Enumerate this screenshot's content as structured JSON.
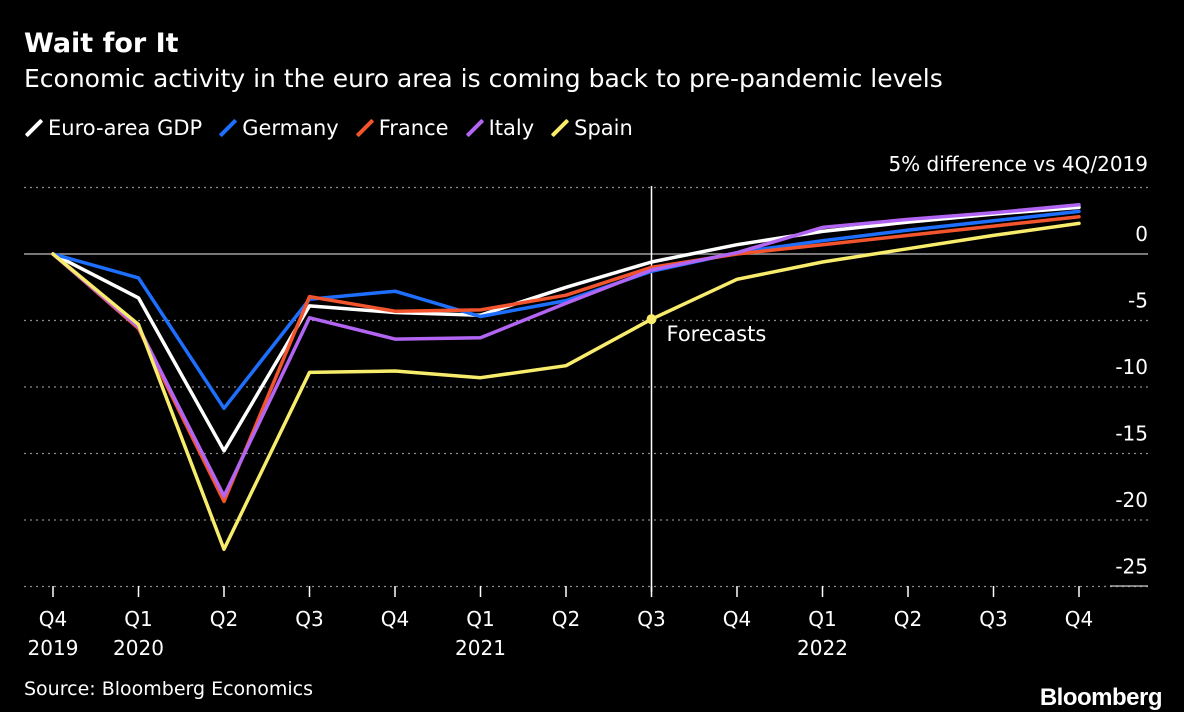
{
  "chart_data": {
    "type": "line",
    "title": "Wait for It",
    "subtitle": "Economic activity in the euro area is coming back to pre-pandemic levels",
    "ylabel_note": "5% difference vs 4Q/2019",
    "ylim": [
      -26,
      5
    ],
    "yticks": [
      0,
      -5,
      -10,
      -15,
      -20,
      -25
    ],
    "grid": true,
    "legend_position": "top-left",
    "quarter_labels": [
      "Q4",
      "Q1",
      "Q2",
      "Q3",
      "Q4",
      "Q1",
      "Q2",
      "Q3",
      "Q4",
      "Q1",
      "Q2",
      "Q3",
      "Q4"
    ],
    "year_labels": [
      {
        "index": 0,
        "label": "2019"
      },
      {
        "index": 1,
        "label": "2020"
      },
      {
        "index": 5,
        "label": "2021"
      },
      {
        "index": 9,
        "label": "2022"
      }
    ],
    "forecast_index": 7,
    "forecast_label": "Forecasts",
    "series": [
      {
        "name": "Euro-area GDP",
        "color": "#ffffff",
        "values": [
          0,
          -3.3,
          -14.8,
          -3.9,
          -4.4,
          -4.6,
          -2.5,
          -0.6,
          0.7,
          1.7,
          2.4,
          3.0,
          3.5
        ]
      },
      {
        "name": "Germany",
        "color": "#1f6fff",
        "values": [
          0,
          -1.8,
          -11.6,
          -3.4,
          -2.8,
          -4.7,
          -3.5,
          -1.3,
          0.1,
          1.0,
          1.8,
          2.5,
          3.2
        ]
      },
      {
        "name": "France",
        "color": "#f2542d",
        "values": [
          0,
          -5.6,
          -18.6,
          -3.2,
          -4.3,
          -4.2,
          -3.1,
          -1.0,
          0.0,
          0.7,
          1.4,
          2.1,
          2.8
        ]
      },
      {
        "name": "Italy",
        "color": "#b265f2",
        "values": [
          0,
          -5.5,
          -18.2,
          -4.8,
          -6.4,
          -6.3,
          -3.7,
          -1.2,
          0.1,
          2.0,
          2.6,
          3.1,
          3.7
        ]
      },
      {
        "name": "Spain",
        "color": "#f7ec6b",
        "values": [
          0,
          -5.3,
          -22.2,
          -8.9,
          -8.8,
          -9.3,
          -8.4,
          -4.9,
          -1.9,
          -0.6,
          0.4,
          1.4,
          2.3
        ]
      }
    ]
  },
  "footer": {
    "source": "Source: Bloomberg Economics",
    "logo": "Bloomberg"
  }
}
